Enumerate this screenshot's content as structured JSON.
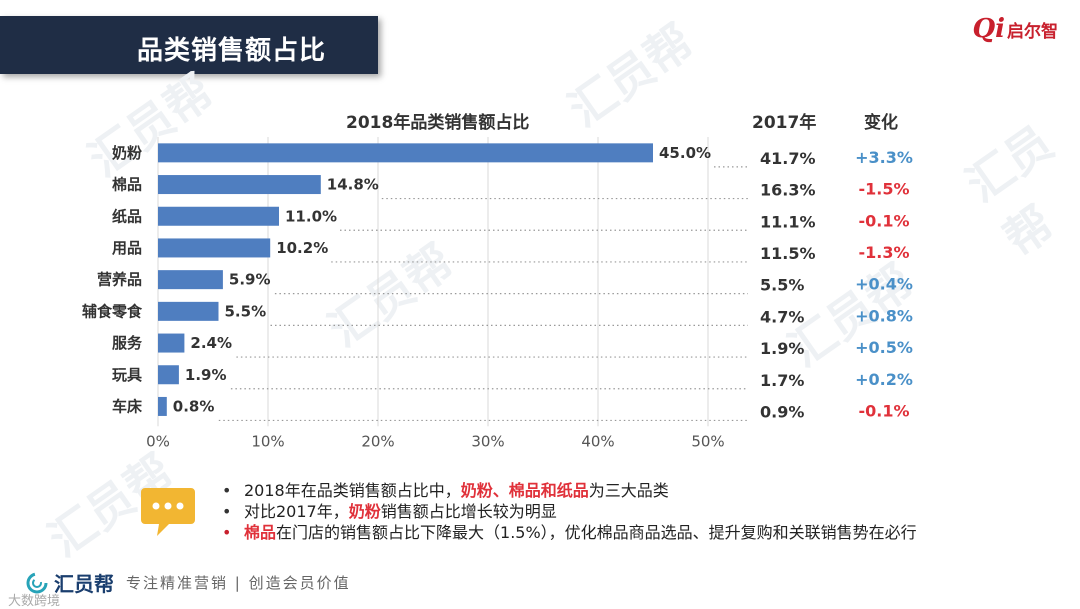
{
  "header": {
    "title": "品类销售额占比"
  },
  "logo": {
    "mark": "Qi",
    "text": "启尔智"
  },
  "watermark": {
    "text": "汇员帮"
  },
  "chart_data": {
    "type": "bar",
    "orientation": "horizontal",
    "title": "2018年品类销售额占比",
    "categories": [
      "奶粉",
      "棉品",
      "纸品",
      "用品",
      "营养品",
      "辅食零食",
      "服务",
      "玩具",
      "车床"
    ],
    "values": [
      45.0,
      14.8,
      11.0,
      10.2,
      5.9,
      5.5,
      2.4,
      1.9,
      0.8
    ],
    "value_labels": [
      "45.0%",
      "14.8%",
      "11.0%",
      "10.2%",
      "5.9%",
      "5.5%",
      "2.4%",
      "1.9%",
      "0.8%"
    ],
    "xlim": [
      0,
      50
    ],
    "x_ticks": [
      "0%",
      "10%",
      "20%",
      "30%",
      "40%",
      "50%"
    ],
    "grid": "vertical",
    "bar_color": "#4f7ec0",
    "table": {
      "col_2017": "2017年",
      "col_change": "变化",
      "values_2017": [
        "41.7%",
        "16.3%",
        "11.1%",
        "11.5%",
        "5.5%",
        "4.7%",
        "1.9%",
        "1.7%",
        "0.9%"
      ],
      "changes": [
        "+3.3%",
        "-1.5%",
        "-0.1%",
        "-1.3%",
        "+0.4%",
        "+0.8%",
        "+0.5%",
        "+0.2%",
        "-0.1%"
      ],
      "positive_color": "#4a90c8",
      "negative_color": "#e0313a"
    }
  },
  "bullets": [
    {
      "parts": [
        {
          "t": "2018年在品类销售额占比中，"
        },
        {
          "t": "奶粉、棉品和纸品",
          "hl": true
        },
        {
          "t": "为三大品类"
        }
      ]
    },
    {
      "parts": [
        {
          "t": "对比2017年，"
        },
        {
          "t": "奶粉",
          "hl": true
        },
        {
          "t": "销售额占比增长较为明显"
        }
      ]
    },
    {
      "parts": [
        {
          "t": "棉品",
          "hl": true
        },
        {
          "t": "在门店的销售额占比下降最大（1.5%），优化棉品商品选品、提升复购和关联销售势在必行"
        }
      ]
    }
  ],
  "footer": {
    "brand": "汇员帮",
    "slogan": "专注精准营销 | 创造会员价值",
    "credit": "大数跨境"
  }
}
